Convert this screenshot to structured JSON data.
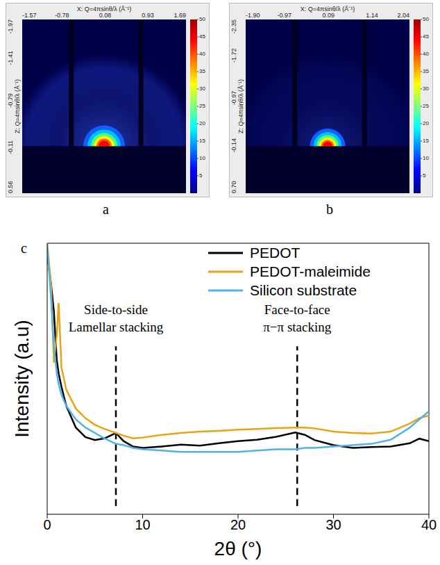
{
  "chart_data": [
    {
      "type": "image",
      "panel": "a",
      "xlabel": "X: Q=4πsinθ/λ (Å⁻¹)",
      "ylabel": "Z: Q=4πsinθ/λ (Å⁻¹)",
      "xlim": [
        -1.57,
        1.69
      ],
      "xticks": [
        -1.57,
        -0.78,
        0.08,
        0.93,
        1.69
      ],
      "ylim": [
        -1.97,
        0.56
      ],
      "yticks": [
        -1.97,
        -1.41,
        -0.79,
        -0.11,
        0.56
      ],
      "colorbar_range": [
        0,
        50
      ],
      "colorbar_ticks": [
        5,
        10,
        15,
        20,
        25,
        30,
        35,
        40,
        45,
        50
      ]
    },
    {
      "type": "image",
      "panel": "b",
      "xlabel": "X: Q=4πsinθ/λ (Å⁻¹)",
      "ylabel": "Z: Q=4πsinθ/λ (Å⁻¹)",
      "xlim": [
        -1.9,
        2.04
      ],
      "xticks": [
        {
          "value": -1.9,
          "label": "-1.90"
        },
        -0.97,
        0.09,
        1.14,
        2.04
      ],
      "ylim": [
        -2.35,
        0.7
      ],
      "yticks": [
        -2.35,
        -1.72,
        -0.97,
        -0.14,
        {
          "value": 0.7,
          "label": "0.70"
        }
      ],
      "colorbar_range": [
        0,
        50
      ],
      "colorbar_ticks": [
        5,
        10,
        15,
        20,
        25,
        30,
        35,
        40,
        45,
        50
      ]
    },
    {
      "type": "line",
      "panel": "c",
      "xlabel": "2θ (°)",
      "ylabel": "Intensity (a.u)",
      "xlim": [
        0,
        40
      ],
      "xticks": [
        0,
        10,
        20,
        30,
        40
      ],
      "ylim": [
        0,
        100
      ],
      "tick_labels": "x",
      "legend": "upper right",
      "x": [
        0,
        0.4,
        0.7,
        1,
        1.2,
        1.5,
        2,
        3,
        4,
        5,
        6,
        7.2,
        8,
        9,
        10,
        12,
        14,
        16,
        18,
        20,
        22,
        24,
        26,
        27,
        28,
        30,
        32,
        34,
        36,
        38,
        39,
        40
      ],
      "series": [
        {
          "name": "PEDOT",
          "color": "#000000",
          "values": [
            96,
            85,
            75,
            57,
            52,
            47,
            40,
            32,
            28.5,
            27.4,
            28,
            30,
            27,
            25,
            24.5,
            25,
            25.7,
            25.3,
            26.2,
            27,
            27.5,
            28.6,
            30.2,
            29.3,
            27.4,
            25.5,
            24.5,
            24.8,
            25,
            26.2,
            27.9,
            27
          ]
        },
        {
          "name": "PEDOT-maleimide",
          "color": "#E8A317",
          "values": [
            100,
            85,
            56,
            66,
            78,
            54,
            46,
            39,
            35.5,
            33,
            31.5,
            30,
            29,
            28,
            28.3,
            29.3,
            30,
            30.5,
            30.8,
            31.2,
            31.5,
            31.8,
            32,
            32,
            31.7,
            30.5,
            30,
            29.8,
            30.5,
            33.5,
            35.5,
            36.4
          ]
        },
        {
          "name": "Silicon substrate",
          "color": "#4FB3E8",
          "values": [
            99,
            80,
            62,
            52,
            48,
            44,
            40,
            35,
            32,
            30,
            28,
            26,
            25.5,
            24.5,
            24,
            23.5,
            23,
            23,
            23,
            23,
            23.5,
            24,
            24,
            24.5,
            24.5,
            25,
            25.5,
            26,
            27.5,
            32,
            35,
            38
          ]
        }
      ],
      "annotations": [
        {
          "x": 7.2,
          "text": [
            "Side-to-side",
            "Lamellar stacking"
          ]
        },
        {
          "x": 26.2,
          "text": [
            "Face-to-face",
            "π−π stacking"
          ]
        }
      ]
    }
  ]
}
